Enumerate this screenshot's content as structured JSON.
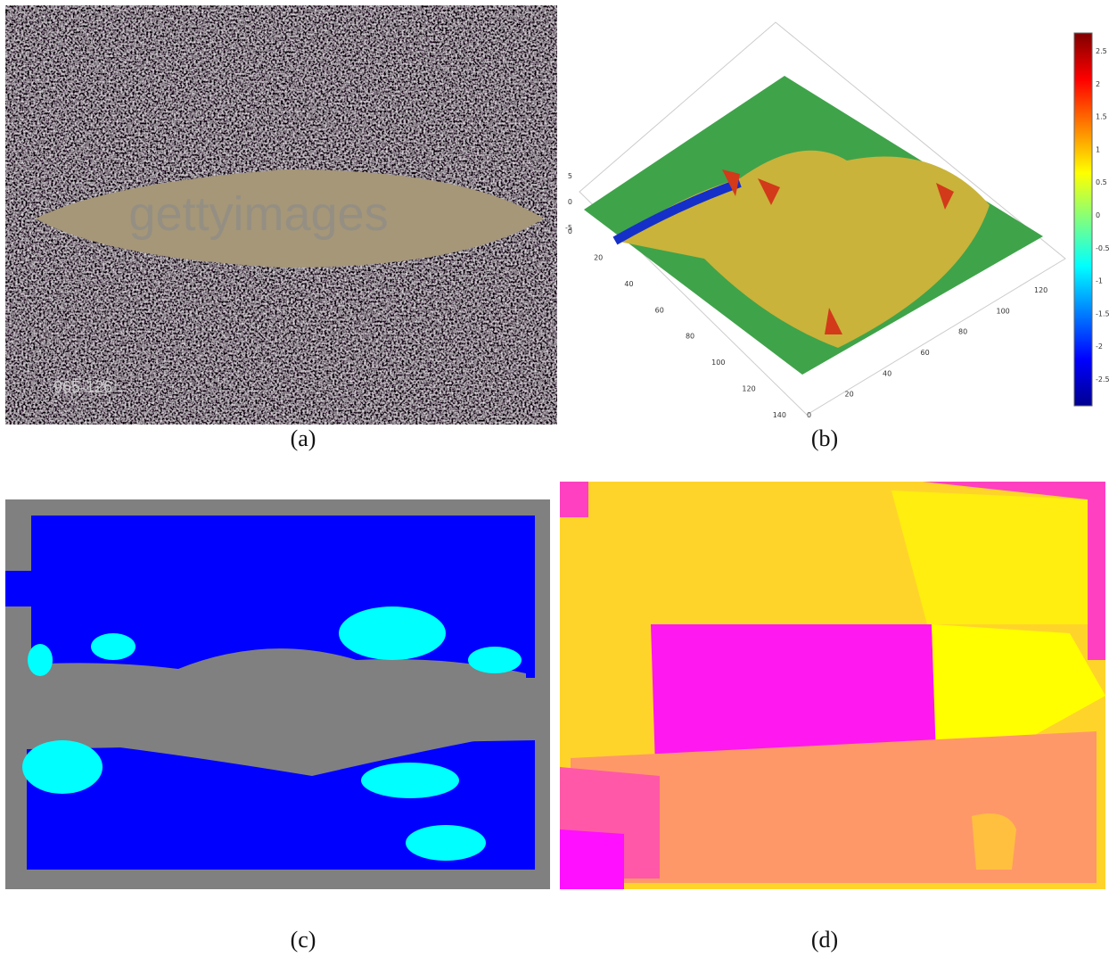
{
  "panels": [
    {
      "caption": "(a)",
      "watermark": "gettyimages",
      "code": "965-126"
    },
    {
      "caption": "(b)",
      "z_ticks": [
        "5",
        "0",
        "-5"
      ],
      "x_ticks": [
        "0",
        "20",
        "40",
        "60",
        "80",
        "100",
        "120",
        "140"
      ],
      "y_ticks": [
        "0",
        "20",
        "40",
        "60",
        "80",
        "100",
        "120"
      ],
      "colorbar_ticks": [
        "2.5",
        "2",
        "1.5",
        "1",
        "0.5",
        "0",
        "-0.5",
        "-1",
        "-1.5",
        "-2",
        "-2.5"
      ]
    },
    {
      "caption": "(c)"
    },
    {
      "caption": "(d)"
    }
  ]
}
